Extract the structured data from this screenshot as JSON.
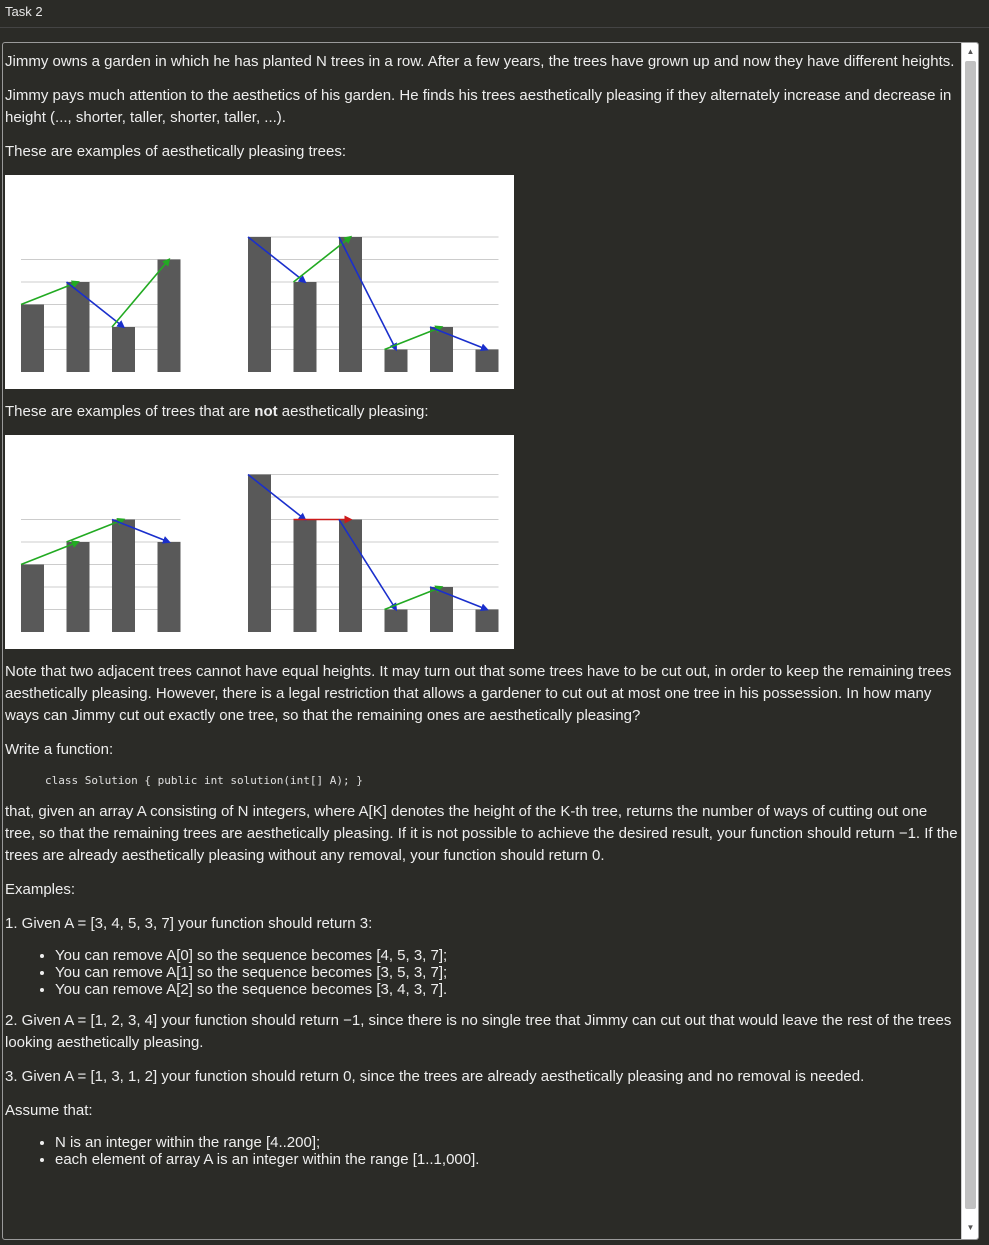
{
  "header": {
    "title": "Task 2"
  },
  "problem": {
    "p1": "Jimmy owns a garden in which he has planted N trees in a row. After a few years, the trees have grown up and now they have different heights.",
    "p2": "Jimmy pays much attention to the aesthetics of his garden. He finds his trees aesthetically pleasing if they alternately increase and decrease in height (..., shorter, taller, shorter, taller, ...).",
    "p3": "These are examples of aesthetically pleasing trees:",
    "p4_before": "These are examples of trees that are ",
    "p4_bold": "not",
    "p4_after": " aesthetically pleasing:",
    "p5": "Note that two adjacent trees cannot have equal heights. It may turn out that some trees have to be cut out, in order to keep the remaining trees aesthetically pleasing. However, there is a legal restriction that allows a gardener to cut out at most one tree in his possession. In how many ways can Jimmy cut out exactly one tree, so that the remaining ones are aesthetically pleasing?",
    "p6": "Write a function:",
    "code": "class Solution { public int solution(int[] A); }",
    "p7": "that, given an array A consisting of N integers, where A[K] denotes the height of the K-th tree, returns the number of ways of cutting out one tree, so that the remaining trees are aesthetically pleasing. If it is not possible to achieve the desired result, your function should return −1. If the trees are already aesthetically pleasing without any removal, your function should return 0.",
    "examples_heading": "Examples:",
    "ex1": "1. Given A = [3, 4, 5, 3, 7] your function should return 3:",
    "ex1_bullets": [
      "You can remove A[0] so the sequence becomes [4, 5, 3, 7];",
      "You can remove A[1] so the sequence becomes [3, 5, 3, 7];",
      "You can remove A[2] so the sequence becomes [3, 4, 3, 7]."
    ],
    "ex2": "2. Given A = [1, 2, 3, 4] your function should return −1, since there is no single tree that Jimmy can cut out that would leave the rest of the trees looking aesthetically pleasing.",
    "ex3": "3. Given A = [1, 3, 1, 2] your function should return 0, since the trees are already aesthetically pleasing and no removal is needed.",
    "assume": "Assume that:",
    "assume_bullets": [
      "N is an integer within the range [4..200];",
      "each element of array A is an integer within the range [1..1,000]."
    ]
  },
  "figures": {
    "colors": {
      "bar": "#595959",
      "up": "#22aa22",
      "down": "#1a2fcc",
      "flat": "#cc1a1a",
      "grid": "#cccccc"
    },
    "pleasing": [
      {
        "heights": [
          3,
          4,
          2,
          5
        ]
      },
      {
        "heights": [
          6,
          4,
          6,
          1,
          2,
          1
        ]
      }
    ],
    "not_pleasing": [
      {
        "heights": [
          3,
          4,
          5,
          4
        ]
      },
      {
        "heights": [
          7,
          5,
          5,
          1,
          2,
          1
        ]
      }
    ]
  }
}
